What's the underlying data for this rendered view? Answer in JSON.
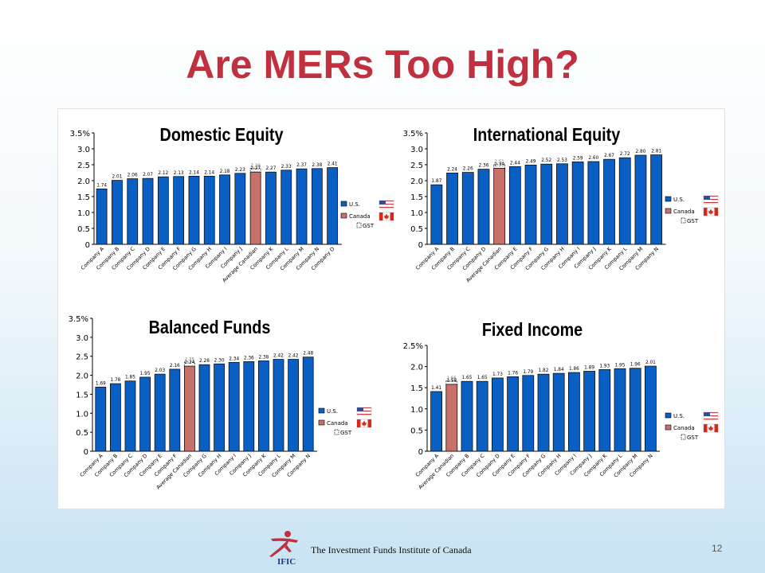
{
  "slide": {
    "title": "Are MERs Too High?",
    "footer_text": "The Investment Funds Institute of Canada",
    "logo_text": "IFIC",
    "page_number": "12"
  },
  "colors": {
    "title": "#c0303e",
    "us_bar": "#0a5fc4",
    "canada_bar": "#c8716a",
    "bar_outline": "#111111"
  },
  "chart_data": [
    {
      "type": "bar",
      "title": "Domestic Equity",
      "y_ticks": [
        "0",
        "0.5",
        "1.0",
        "1.5",
        "2.0",
        "2.5",
        "3.0",
        "3.5%"
      ],
      "ylim": [
        0,
        3.5
      ],
      "grid": false,
      "categories": [
        "Company A",
        "Company B",
        "Company C",
        "Company D",
        "Company E",
        "Company F",
        "Company G",
        "Company H",
        "Company I",
        "Company J",
        "Average Canadian",
        "Company K",
        "Company L",
        "Company M",
        "Company N",
        "Company O"
      ],
      "values": [
        1.74,
        2.01,
        2.06,
        2.07,
        2.12,
        2.13,
        2.14,
        2.14,
        2.18,
        2.23,
        2.27,
        2.27,
        2.33,
        2.37,
        2.38,
        2.41
      ],
      "highlight_index": 10,
      "gst_value": 2.39,
      "legend": [
        "U.S.",
        "Canada",
        "GST"
      ],
      "legend_position": "right"
    },
    {
      "type": "bar",
      "title": "International Equity",
      "y_ticks": [
        "0",
        "0.5",
        "1.0",
        "1.5",
        "2.0",
        "2.5",
        "3.0",
        "3.5%"
      ],
      "ylim": [
        0,
        3.5
      ],
      "grid": false,
      "categories": [
        "Company A",
        "Company B",
        "Company C",
        "Company D",
        "Average Canadian",
        "Company E",
        "Company F",
        "Company G",
        "Company H",
        "Company I",
        "Company J",
        "Company K",
        "Company L",
        "Company M",
        "Company N"
      ],
      "values": [
        1.87,
        2.24,
        2.26,
        2.36,
        2.39,
        2.44,
        2.49,
        2.52,
        2.53,
        2.59,
        2.6,
        2.67,
        2.72,
        2.8,
        2.81
      ],
      "value_labels": [
        "1.87",
        "2.24",
        "2.26",
        "2.36",
        "2.39",
        "2.44",
        "2.49",
        "2.52",
        "2.53",
        "2.59",
        "2.60",
        "2.67",
        "2.72",
        "2.80",
        "2.81"
      ],
      "highlight_index": 4,
      "gst_value": 2.51,
      "legend": [
        "U.S.",
        "Canada",
        "GST"
      ],
      "legend_position": "right"
    },
    {
      "type": "bar",
      "title": "Balanced Funds",
      "y_ticks": [
        "0",
        "0.5",
        "1.0",
        "1.5",
        "2.0",
        "2.5",
        "3.0",
        "3.5%"
      ],
      "ylim": [
        0,
        3.5
      ],
      "grid": false,
      "categories": [
        "Company A",
        "Company B",
        "Company C",
        "Company D",
        "Company E",
        "Company F",
        "Average Canadian",
        "Company G",
        "Company H",
        "Company I",
        "Company J",
        "Company K",
        "Company L",
        "Company M",
        "Company N"
      ],
      "values": [
        1.69,
        1.78,
        1.85,
        1.95,
        2.03,
        2.16,
        2.24,
        2.28,
        2.3,
        2.34,
        2.36,
        2.38,
        2.42,
        2.42,
        2.48
      ],
      "value_labels": [
        "1.69",
        "1.78",
        "1.85",
        "1.95",
        "2.03",
        "2.16",
        "2.24",
        "2.28",
        "2.30",
        "2.34",
        "2.36",
        "2.38",
        "2.42",
        "2.42",
        "2.48"
      ],
      "highlight_index": 6,
      "gst_value": 2.35,
      "legend": [
        "U.S.",
        "Canada",
        "GST"
      ],
      "legend_position": "right"
    },
    {
      "type": "bar",
      "title": "Fixed Income",
      "y_ticks": [
        "0",
        "0.5",
        "1.0",
        "1.5",
        "2.0",
        "2.5%"
      ],
      "ylim": [
        0,
        2.5
      ],
      "grid": false,
      "categories": [
        "Company A",
        "Average Canadian",
        "Company B",
        "Company C",
        "Company D",
        "Company E",
        "Company F",
        "Company G",
        "Company H",
        "Company I",
        "Company J",
        "Company K",
        "Company L",
        "Company M",
        "Company N"
      ],
      "values": [
        1.41,
        1.58,
        1.65,
        1.65,
        1.73,
        1.76,
        1.79,
        1.82,
        1.84,
        1.86,
        1.89,
        1.93,
        1.95,
        1.96,
        2.01
      ],
      "highlight_index": 1,
      "gst_value": 1.66,
      "legend": [
        "U.S.",
        "Canada",
        "GST"
      ],
      "legend_position": "right"
    }
  ]
}
